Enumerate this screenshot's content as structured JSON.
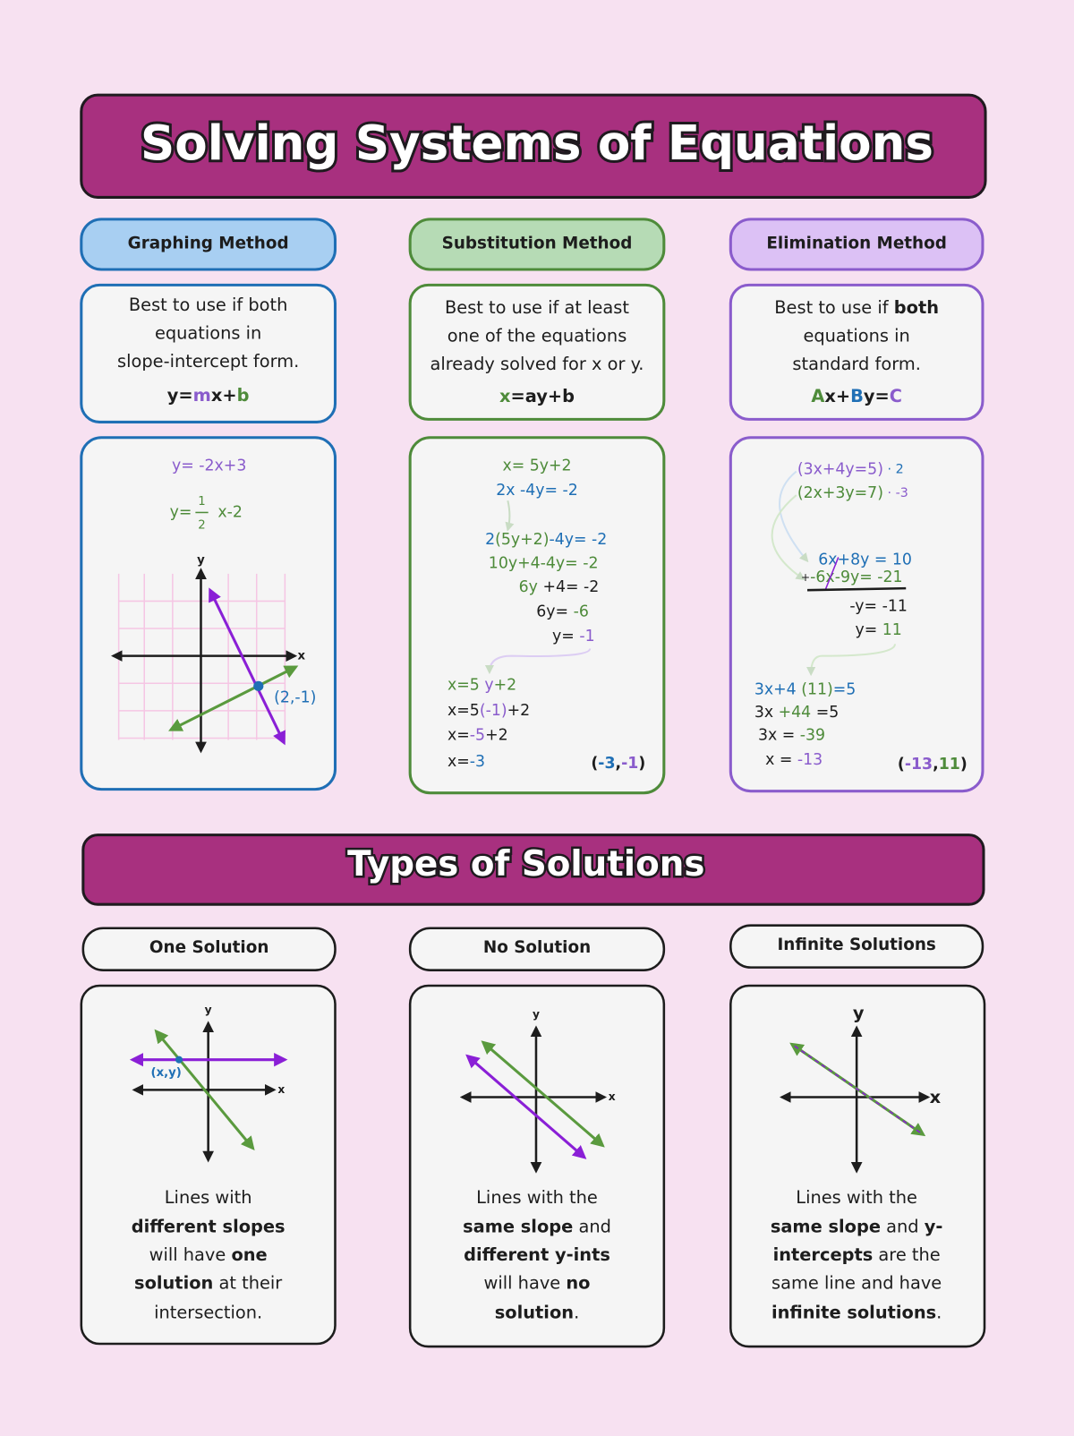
{
  "title": "Solving Systems of Equations",
  "methods": [
    {
      "name": "Graphing Method",
      "description": [
        [
          "Best to use if both"
        ],
        [
          "equations in"
        ],
        [
          "slope-intercept form."
        ]
      ],
      "form": [
        "y=",
        "m",
        "x+",
        "b"
      ],
      "work": {
        "equation_1": "y= -2x+3",
        "equation_2": [
          "y=",
          "1",
          "2",
          "x-2"
        ],
        "y_axis": "y",
        "x_axis": "x",
        "point": "(2,-1)"
      }
    },
    {
      "name": "Substitution Method",
      "description": [
        [
          "Best to use if at least"
        ],
        [
          "one of the equations"
        ],
        [
          "already solved for x or y."
        ]
      ],
      "form": [
        "x",
        "=ay+b"
      ],
      "work": [
        [
          "x= 5y+2"
        ],
        [
          "2x -4y= -2"
        ],
        [
          "2",
          "(5y+2)",
          "-4y= -2"
        ],
        [
          "10y+4-4y= -2"
        ],
        [
          "6y",
          " +4= -2"
        ],
        [
          "6y= ",
          "-6"
        ],
        [
          "y= ",
          "-1"
        ],
        [
          "x=5 ",
          "y",
          "+2"
        ],
        [
          "x=5",
          "(-1)",
          "+2"
        ],
        [
          "x=",
          "-5",
          "+2"
        ],
        [
          "x=",
          "-3"
        ]
      ],
      "solution": [
        "(",
        "-3",
        ",",
        "-1",
        ")"
      ]
    },
    {
      "name": "Elimination Method",
      "description": [
        [
          "Best to use if ",
          "both"
        ],
        [
          "equations in"
        ],
        [
          "standard form."
        ]
      ],
      "form": [
        "A",
        "x+",
        "B",
        "y=",
        "C"
      ],
      "work": [
        [
          "(3x+4y=5)",
          " · 2"
        ],
        [
          "(2x+3y=7)",
          " · -3"
        ],
        [
          "6x+8y = 10"
        ],
        [
          "+",
          "-6x-9y= -21"
        ],
        [
          "-y= -11"
        ],
        [
          "y= ",
          "11"
        ],
        [
          "3x+4 ",
          "(11)",
          "=5"
        ],
        [
          "3x ",
          "+44",
          " =5"
        ],
        [
          "3x = ",
          "-39"
        ],
        [
          "x = ",
          "-13"
        ]
      ],
      "solution": [
        "(",
        "-13",
        ",",
        "11",
        ")"
      ]
    }
  ],
  "types_title": "Types of Solutions",
  "types": [
    {
      "name": "One Solution",
      "y_axis": "y",
      "x_axis": "x",
      "point": "(x,y)",
      "description": [
        [
          "Lines with"
        ],
        [
          "different slopes"
        ],
        [
          "will have ",
          "one"
        ],
        [
          "solution",
          " at their"
        ],
        [
          "intersection."
        ]
      ]
    },
    {
      "name": "No Solution",
      "y_axis": "y",
      "x_axis": "x",
      "description": [
        [
          "Lines with the"
        ],
        [
          "same slope",
          " and"
        ],
        [
          "different y-ints"
        ],
        [
          "will have ",
          "no"
        ],
        [
          "solution",
          "."
        ]
      ]
    },
    {
      "name": "Infinite Solutions",
      "y_axis": "y",
      "x_axis": "x",
      "description": [
        [
          "Lines with the"
        ],
        [
          "same slope",
          " and ",
          "y-"
        ],
        [
          "intercepts",
          " are the"
        ],
        [
          "same line and have"
        ],
        [
          "infinite solutions",
          "."
        ]
      ]
    }
  ]
}
